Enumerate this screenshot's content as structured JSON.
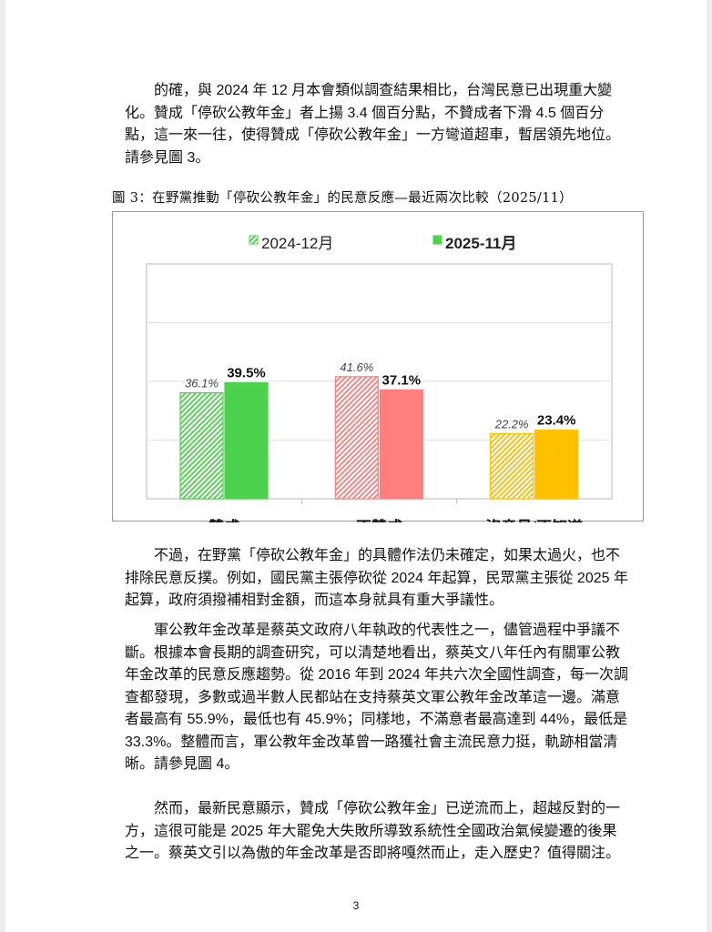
{
  "paragraphs": [
    {
      "lines": [
        "的確，與 2024 年 12 月本會類似調查結果相比，台灣民意已出現重大變",
        "化。贊成「停砍公教年金」者上揚 3.4 個百分點，不贊成者下滑 4.5 個百分",
        "點，這一來一往，使得贊成「停砍公教年金」一方彎道超車，暫居領先地位。",
        "請參見圖 3。"
      ]
    },
    {
      "lines": [
        "不過，在野黨「停砍公教年金」的具體作法仍未確定，如果太過火，也不",
        "排除民意反撲。例如，國民黨主張停砍從 2024 年起算，民眾黨主張從 2025 年",
        "起算，政府須撥補相對金額，而這本身就具有重大爭議性。"
      ]
    },
    {
      "lines": [
        "軍公教年金改革是蔡英文政府八年執政的代表性之一，儘管過程中爭議不",
        "斷。根據本會長期的調查研究，可以清楚地看出，蔡英文八年任內有關軍公教",
        "年金改革的民意反應趨勢。從 2016 年到 2024 年共六次全國性調查，每一次調",
        "查都發現，多數或過半數人民都站在支持蔡英文軍公教年金改革這一邊。滿意",
        "者最高有 55.9%，最低也有 45.9%；同樣地，不滿意者最高達到 44%，最低是",
        "33.3%。整體而言，軍公教年金改革曾一路獲社會主流民意力挺，軌跡相當清",
        "晰。請參見圖 4。"
      ]
    },
    {
      "lines": [
        "然而，最新民意顯示，贊成「停砍公教年金」已逆流而上，超越反對的一",
        "方，這很可能是 2025 年大罷免大失敗所導致系統性全國政治氣候變遷的後果",
        "之一。蔡英文引以為傲的年金改革是否即將嘎然而止，走入歷史？值得關注。"
      ]
    }
  ],
  "figure_caption": "圖 3：在野黨推動「停砍公教年金」的民意反應—最近兩次比較（2025/11）",
  "page_number": "3",
  "chart_data": {
    "type": "bar",
    "categories": [
      "贊成",
      "不贊成",
      "沒意見/不知道"
    ],
    "series": [
      {
        "name": "2024-12月",
        "values": [
          36.1,
          41.6,
          22.2
        ],
        "labels": [
          "36.1%",
          "41.6%",
          "22.2%"
        ],
        "style": "hatched"
      },
      {
        "name": "2025-11月",
        "values": [
          39.5,
          37.1,
          23.4
        ],
        "labels": [
          "39.5%",
          "37.1%",
          "23.4%"
        ],
        "style": "solid"
      }
    ],
    "category_colors": [
      "#4cd24c",
      "#ff7f7f",
      "#ffc000"
    ],
    "hatch_colors": [
      "#5ccf5c",
      "#f08a8a",
      "#f5c020"
    ],
    "ylim": [
      0,
      80
    ],
    "grid": true,
    "gridline_step": 20,
    "legend_position": "top",
    "xlabel": "",
    "ylabel": ""
  }
}
